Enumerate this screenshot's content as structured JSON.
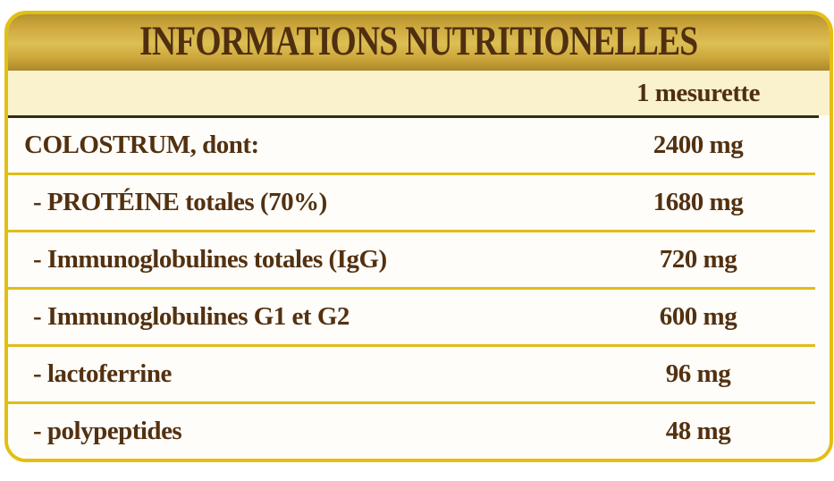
{
  "title": "INFORMATIONS NUTRITIONELLES",
  "table": {
    "column_header": "1 mesurette",
    "rows": [
      {
        "label": "COLOSTRUM, dont:",
        "value": "2400 mg",
        "indent": false
      },
      {
        "label": "- PROTÉINE totales (70%)",
        "value": "1680 mg",
        "indent": true
      },
      {
        "label": "- Immunoglobulines totales (IgG)",
        "value": "720 mg",
        "indent": true
      },
      {
        "label": "- Immunoglobulines G1 et G2",
        "value": "600 mg",
        "indent": true
      },
      {
        "label": "- lactoferrine",
        "value": "96 mg",
        "indent": true
      },
      {
        "label": "- polypeptides",
        "value": "48 mg",
        "indent": true
      }
    ]
  },
  "colors": {
    "card_border_gold": "#e3bf12",
    "band_gold": "#cda73d",
    "header_cream": "#faf1cd",
    "row_background": "#fefdfa",
    "text_brown": "#533110",
    "dark_separator": "#332a18",
    "gold_separator": "#e0bd17"
  }
}
